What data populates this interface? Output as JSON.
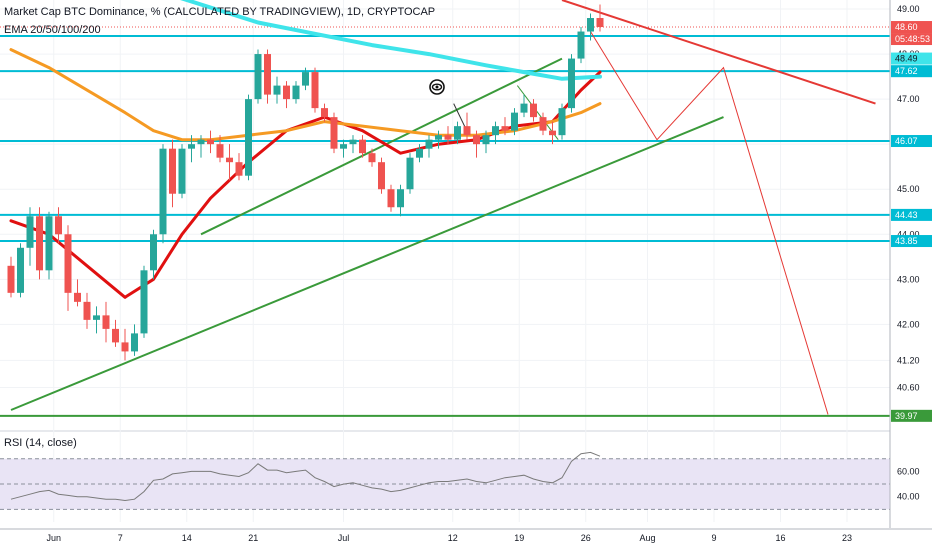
{
  "header": {
    "title": "Market Cap BTC Dominance, % (CALCULATED BY TRADINGVIEW), 1D, CRYPTOCAP",
    "indicator": "EMA 20/50/100/200"
  },
  "rsi_panel": {
    "label": "RSI (14, close)"
  },
  "colors": {
    "up": "#26a69a",
    "down": "#ef5350",
    "level": "#00bcd4",
    "ema_red": "#e01010",
    "ema_orange": "#f59a23",
    "ema_cyan": "#3fe4ea",
    "trend_green": "#3a9a3a",
    "trend_red": "#e53935",
    "rsi_line": "#7a7a7a",
    "rsi_band": "#e9e4f5"
  },
  "chart_data": [
    {
      "type": "candlestick",
      "y_axis": {
        "min": 39.7,
        "max": 49.2,
        "ticks": [
          "49.00",
          "48.00",
          "47.00",
          "46.00",
          "45.00",
          "44.00",
          "43.00",
          "42.00",
          "41.20",
          "40.60"
        ]
      },
      "x_axis": {
        "ticks": [
          "Jun",
          "7",
          "14",
          "21",
          "Jul",
          "12",
          "19",
          "26",
          "Aug",
          "9",
          "16",
          "23"
        ]
      },
      "candles": [
        {
          "o": 43.3,
          "h": 43.5,
          "l": 42.6,
          "c": 42.7
        },
        {
          "o": 42.7,
          "h": 43.8,
          "l": 42.6,
          "c": 43.7
        },
        {
          "o": 43.7,
          "h": 44.6,
          "l": 43.3,
          "c": 44.4
        },
        {
          "o": 44.4,
          "h": 44.6,
          "l": 43.0,
          "c": 43.2
        },
        {
          "o": 43.2,
          "h": 44.5,
          "l": 43.0,
          "c": 44.4
        },
        {
          "o": 44.4,
          "h": 44.6,
          "l": 43.8,
          "c": 44.0
        },
        {
          "o": 44.0,
          "h": 44.2,
          "l": 42.3,
          "c": 42.7
        },
        {
          "o": 42.7,
          "h": 43.0,
          "l": 42.4,
          "c": 42.5
        },
        {
          "o": 42.5,
          "h": 42.7,
          "l": 41.9,
          "c": 42.1
        },
        {
          "o": 42.1,
          "h": 42.4,
          "l": 41.8,
          "c": 42.2
        },
        {
          "o": 42.2,
          "h": 42.5,
          "l": 41.6,
          "c": 41.9
        },
        {
          "o": 41.9,
          "h": 42.1,
          "l": 41.5,
          "c": 41.6
        },
        {
          "o": 41.6,
          "h": 41.9,
          "l": 41.2,
          "c": 41.4
        },
        {
          "o": 41.4,
          "h": 42.0,
          "l": 41.3,
          "c": 41.8
        },
        {
          "o": 41.8,
          "h": 43.3,
          "l": 41.7,
          "c": 43.2
        },
        {
          "o": 43.2,
          "h": 44.1,
          "l": 43.0,
          "c": 44.0
        },
        {
          "o": 44.0,
          "h": 46.0,
          "l": 43.8,
          "c": 45.9
        },
        {
          "o": 45.9,
          "h": 46.1,
          "l": 44.6,
          "c": 44.9
        },
        {
          "o": 44.9,
          "h": 46.0,
          "l": 44.8,
          "c": 45.9
        },
        {
          "o": 45.9,
          "h": 46.2,
          "l": 45.6,
          "c": 46.0
        },
        {
          "o": 46.0,
          "h": 46.2,
          "l": 45.7,
          "c": 46.1
        },
        {
          "o": 46.1,
          "h": 46.3,
          "l": 45.8,
          "c": 46.0
        },
        {
          "o": 46.0,
          "h": 46.2,
          "l": 45.6,
          "c": 45.7
        },
        {
          "o": 45.7,
          "h": 46.0,
          "l": 45.2,
          "c": 45.6
        },
        {
          "o": 45.6,
          "h": 45.8,
          "l": 45.2,
          "c": 45.3
        },
        {
          "o": 45.3,
          "h": 47.1,
          "l": 45.2,
          "c": 47.0
        },
        {
          "o": 47.0,
          "h": 48.1,
          "l": 46.9,
          "c": 48.0
        },
        {
          "o": 48.0,
          "h": 48.1,
          "l": 46.9,
          "c": 47.1
        },
        {
          "o": 47.1,
          "h": 47.5,
          "l": 46.9,
          "c": 47.3
        },
        {
          "o": 47.3,
          "h": 47.4,
          "l": 46.8,
          "c": 47.0
        },
        {
          "o": 47.0,
          "h": 47.4,
          "l": 46.9,
          "c": 47.3
        },
        {
          "o": 47.3,
          "h": 47.7,
          "l": 47.2,
          "c": 47.6
        },
        {
          "o": 47.6,
          "h": 47.7,
          "l": 46.7,
          "c": 46.8
        },
        {
          "o": 46.8,
          "h": 46.9,
          "l": 46.5,
          "c": 46.6
        },
        {
          "o": 46.6,
          "h": 46.7,
          "l": 45.8,
          "c": 45.9
        },
        {
          "o": 45.9,
          "h": 46.1,
          "l": 45.7,
          "c": 46.0
        },
        {
          "o": 46.0,
          "h": 46.2,
          "l": 45.8,
          "c": 46.1
        },
        {
          "o": 46.1,
          "h": 46.2,
          "l": 45.7,
          "c": 45.8
        },
        {
          "o": 45.8,
          "h": 45.9,
          "l": 45.5,
          "c": 45.6
        },
        {
          "o": 45.6,
          "h": 45.7,
          "l": 44.9,
          "c": 45.0
        },
        {
          "o": 45.0,
          "h": 45.1,
          "l": 44.5,
          "c": 44.6
        },
        {
          "o": 44.6,
          "h": 45.1,
          "l": 44.4,
          "c": 45.0
        },
        {
          "o": 45.0,
          "h": 45.8,
          "l": 44.9,
          "c": 45.7
        },
        {
          "o": 45.7,
          "h": 46.0,
          "l": 45.6,
          "c": 45.9
        },
        {
          "o": 45.9,
          "h": 46.2,
          "l": 45.7,
          "c": 46.1
        },
        {
          "o": 46.1,
          "h": 46.3,
          "l": 45.9,
          "c": 46.2
        },
        {
          "o": 46.2,
          "h": 46.4,
          "l": 46.0,
          "c": 46.1
        },
        {
          "o": 46.1,
          "h": 46.5,
          "l": 46.0,
          "c": 46.4
        },
        {
          "o": 46.4,
          "h": 46.7,
          "l": 46.1,
          "c": 46.2
        },
        {
          "o": 46.2,
          "h": 46.3,
          "l": 45.7,
          "c": 46.0
        },
        {
          "o": 46.0,
          "h": 46.3,
          "l": 45.8,
          "c": 46.2
        },
        {
          "o": 46.2,
          "h": 46.5,
          "l": 46.0,
          "c": 46.4
        },
        {
          "o": 46.4,
          "h": 46.6,
          "l": 46.2,
          "c": 46.3
        },
        {
          "o": 46.3,
          "h": 46.8,
          "l": 46.2,
          "c": 46.7
        },
        {
          "o": 46.7,
          "h": 47.1,
          "l": 46.6,
          "c": 46.9
        },
        {
          "o": 46.9,
          "h": 47.0,
          "l": 46.5,
          "c": 46.6
        },
        {
          "o": 46.6,
          "h": 46.7,
          "l": 46.2,
          "c": 46.3
        },
        {
          "o": 46.3,
          "h": 46.5,
          "l": 46.0,
          "c": 46.2
        },
        {
          "o": 46.2,
          "h": 46.9,
          "l": 46.1,
          "c": 46.8
        },
        {
          "o": 46.8,
          "h": 48.0,
          "l": 46.7,
          "c": 47.9
        },
        {
          "o": 47.9,
          "h": 48.6,
          "l": 47.8,
          "c": 48.5
        },
        {
          "o": 48.5,
          "h": 48.9,
          "l": 48.3,
          "c": 48.8
        },
        {
          "o": 48.8,
          "h": 49.1,
          "l": 48.5,
          "c": 48.6
        }
      ],
      "ema": [
        {
          "name": "EMA 20",
          "color_key": "ema_red",
          "points": [
            [
              0,
              44.3
            ],
            [
              4,
              44.0
            ],
            [
              8,
              43.3
            ],
            [
              12,
              42.6
            ],
            [
              15,
              43.0
            ],
            [
              18,
              44.0
            ],
            [
              21,
              44.8
            ],
            [
              25,
              45.6
            ],
            [
              29,
              46.3
            ],
            [
              33,
              46.6
            ],
            [
              37,
              46.3
            ],
            [
              41,
              45.8
            ],
            [
              45,
              46.0
            ],
            [
              49,
              46.1
            ],
            [
              53,
              46.4
            ],
            [
              57,
              46.5
            ],
            [
              60,
              47.2
            ],
            [
              62,
              47.6
            ]
          ]
        },
        {
          "name": "EMA 50",
          "color_key": "ema_orange",
          "points": [
            [
              0,
              48.1
            ],
            [
              4,
              47.7
            ],
            [
              8,
              47.2
            ],
            [
              12,
              46.7
            ],
            [
              15,
              46.3
            ],
            [
              18,
              46.1
            ],
            [
              21,
              46.1
            ],
            [
              25,
              46.2
            ],
            [
              29,
              46.3
            ],
            [
              33,
              46.5
            ],
            [
              37,
              46.4
            ],
            [
              41,
              46.3
            ],
            [
              45,
              46.2
            ],
            [
              49,
              46.2
            ],
            [
              53,
              46.3
            ],
            [
              57,
              46.5
            ],
            [
              60,
              46.7
            ],
            [
              62,
              46.9
            ]
          ]
        },
        {
          "name": "EMA 100",
          "color_key": "ema_cyan",
          "points": [
            [
              14,
              49.5
            ],
            [
              20,
              49.1
            ],
            [
              26,
              48.7
            ],
            [
              32,
              48.45
            ],
            [
              38,
              48.2
            ],
            [
              44,
              48.0
            ],
            [
              50,
              47.75
            ],
            [
              54,
              47.6
            ],
            [
              58,
              47.45
            ],
            [
              62,
              47.5
            ]
          ]
        }
      ],
      "levels": [
        {
          "value": 48.6,
          "label": "48.60",
          "style": "dotted",
          "tag": "price"
        },
        {
          "value": 48.4,
          "label": "",
          "style": "solid"
        },
        {
          "value": 47.62,
          "label": "47.62",
          "style": "solid"
        },
        {
          "value": 46.07,
          "label": "46.07",
          "style": "solid"
        },
        {
          "value": 44.43,
          "label": "44.43",
          "style": "solid"
        },
        {
          "value": 43.85,
          "label": "43.85",
          "style": "solid"
        },
        {
          "value": 39.97,
          "label": "39.97",
          "style": "solid",
          "color_key": "trend_green"
        }
      ],
      "axis_tags": [
        {
          "value": 48.6,
          "label": "48.60",
          "kind": "price"
        },
        {
          "value": 48.27,
          "label": "05:48:53",
          "kind": "countdown"
        },
        {
          "value": 47.9,
          "label": "48.49",
          "kind": "ema_cyan"
        },
        {
          "value": 47.62,
          "label": "47.62",
          "kind": "level"
        },
        {
          "value": 46.07,
          "label": "46.07",
          "kind": "level"
        },
        {
          "value": 44.43,
          "label": "44.43",
          "kind": "level"
        },
        {
          "value": 43.85,
          "label": "43.85",
          "kind": "level"
        },
        {
          "value": 39.97,
          "label": "39.97",
          "kind": "green"
        }
      ],
      "trendlines": [
        {
          "color_key": "trend_green",
          "from": [
            20,
            44.0
          ],
          "to": [
            58,
            47.9
          ],
          "ext_right": false
        },
        {
          "color_key": "trend_green",
          "from": [
            0,
            40.1
          ],
          "to": [
            75,
            46.6
          ]
        },
        {
          "color_key": "trend_red",
          "from": [
            58,
            49.2
          ],
          "to": [
            91,
            46.9
          ]
        },
        {
          "color_key": "trend_red",
          "from": [
            61,
            48.5
          ],
          "to": [
            68,
            46.1
          ],
          "then": [
            [
              75,
              47.7
            ],
            [
              86,
              40.0
            ]
          ]
        }
      ]
    },
    {
      "type": "line",
      "title": "RSI (14, close)",
      "y_axis": {
        "min": 20,
        "max": 88,
        "ticks": [
          "60.00",
          "40.00"
        ],
        "band": [
          30,
          70
        ]
      },
      "values": [
        38,
        40,
        42,
        44,
        45,
        42,
        41,
        40,
        40,
        39,
        38,
        38,
        37,
        38,
        44,
        53,
        54,
        58,
        59,
        60,
        60,
        60,
        58,
        57,
        56,
        59,
        66,
        61,
        61,
        59,
        60,
        61,
        55,
        52,
        48,
        50,
        51,
        49,
        47,
        46,
        44,
        45,
        47,
        49,
        51,
        52,
        52,
        53,
        54,
        52,
        51,
        53,
        55,
        56,
        57,
        54,
        52,
        51,
        55,
        68,
        74,
        75,
        72
      ]
    }
  ]
}
